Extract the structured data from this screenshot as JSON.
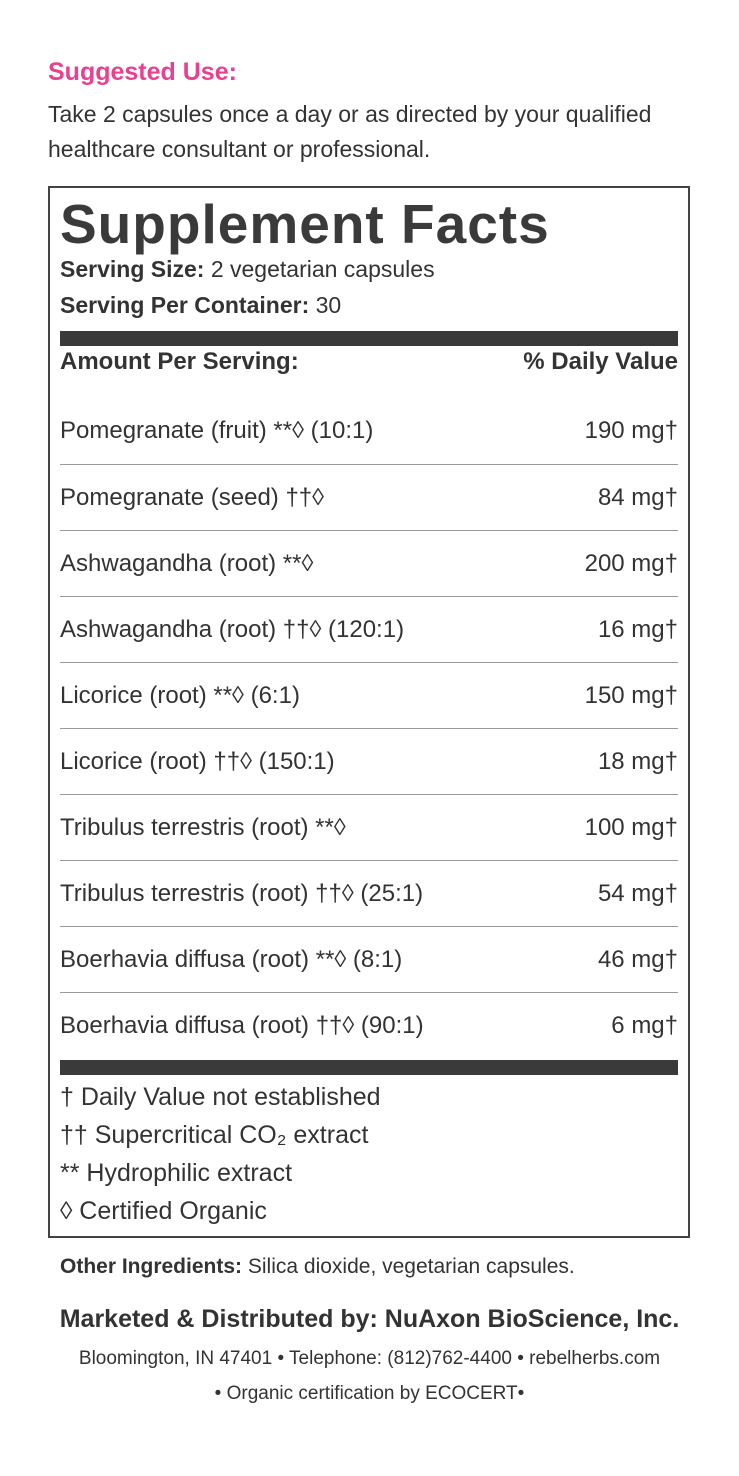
{
  "suggested_use": {
    "heading": "Suggested Use:",
    "text": "Take 2 capsules once a day or as directed by your qualified healthcare consultant or professional."
  },
  "facts": {
    "title": "Supplement Facts",
    "serving_size": {
      "label": "Serving Size:",
      "value": "2 vegetarian capsules"
    },
    "servings_per_container": {
      "label": "Serving Per Container:",
      "value": "30"
    },
    "header": [
      "Amount Per Serving:",
      "% Daily Value"
    ],
    "rows": [
      [
        "Pomegranate (fruit) **◊ (10:1)",
        "190 mg†"
      ],
      [
        "Pomegranate (seed) ††◊",
        "84 mg†"
      ],
      [
        "Ashwagandha (root) **◊",
        "200 mg†"
      ],
      [
        "Ashwagandha (root) ††◊ (120:1)",
        "16 mg†"
      ],
      [
        "Licorice (root) **◊ (6:1)",
        "150 mg†"
      ],
      [
        "Licorice (root) ††◊ (150:1)",
        "18 mg†"
      ],
      [
        "Tribulus terrestris (root) **◊",
        "100 mg†"
      ],
      [
        "Tribulus terrestris (root) ††◊ (25:1)",
        "54 mg†"
      ],
      [
        "Boerhavia diffusa (root) **◊ (8:1)",
        "46 mg†"
      ],
      [
        "Boerhavia diffusa (root) ††◊ (90:1)",
        "6 mg†"
      ]
    ],
    "footnotes": [
      "† Daily Value not established",
      "†† Supercritical CO₂ extract",
      "** Hydrophilic extract",
      "◊ Certified Organic"
    ]
  },
  "other_ingredients": {
    "label": "Other Ingredients:",
    "text": "Silica dioxide, vegetarian capsules."
  },
  "footer": {
    "marketed": "Marketed & Distributed by: NuAxon BioScience, Inc.",
    "address": "Bloomington, IN 47401 • Telephone: (812)762-4400 • rebelherbs.com",
    "certification": "• Organic certification by ECOCERT•"
  }
}
